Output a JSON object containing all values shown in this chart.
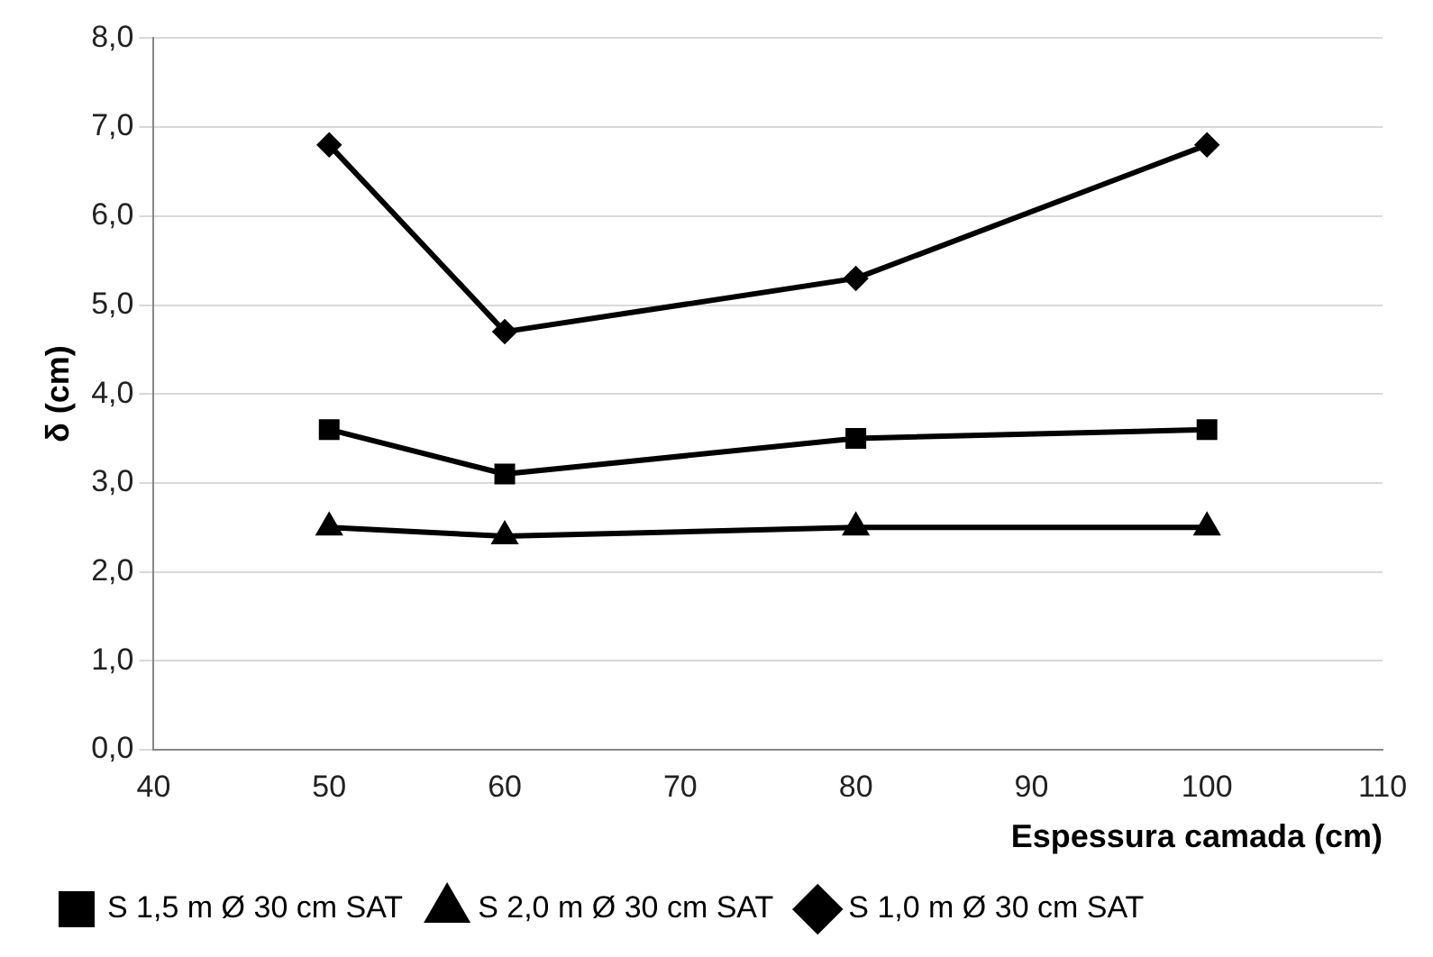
{
  "chart_data": {
    "type": "line",
    "xlabel": "Espessura camada (cm)",
    "ylabel": "δ (cm)",
    "x": [
      50,
      60,
      80,
      100
    ],
    "series": [
      {
        "name": "S 1,5 m Ø 30 cm SAT",
        "color": "#000000",
        "marker": "square",
        "values": [
          3.6,
          3.1,
          3.5,
          3.6
        ]
      },
      {
        "name": "S 2,0 m Ø 30 cm SAT",
        "color": "#000000",
        "marker": "triangle",
        "values": [
          2.5,
          2.4,
          2.5,
          2.5
        ]
      },
      {
        "name": "S 1,0 m Ø 30 cm SAT",
        "color": "#000000",
        "marker": "diamond",
        "values": [
          6.8,
          4.7,
          5.3,
          6.8
        ]
      }
    ],
    "xlim": [
      40,
      110
    ],
    "xticks": [
      40,
      50,
      60,
      70,
      80,
      90,
      100,
      110
    ],
    "ylim": [
      0,
      8
    ],
    "yticks": [
      {
        "value": 0,
        "label": "0,0"
      },
      {
        "value": 1,
        "label": "1,0"
      },
      {
        "value": 2,
        "label": "2,0"
      },
      {
        "value": 3,
        "label": "3,0"
      },
      {
        "value": 4,
        "label": "4,0"
      },
      {
        "value": 5,
        "label": "5,0"
      },
      {
        "value": 6,
        "label": "6,0"
      },
      {
        "value": 7,
        "label": "7,0"
      },
      {
        "value": 8,
        "label": "8,0"
      }
    ],
    "grid": "y",
    "legend": "bottom",
    "line_style": "solid"
  }
}
